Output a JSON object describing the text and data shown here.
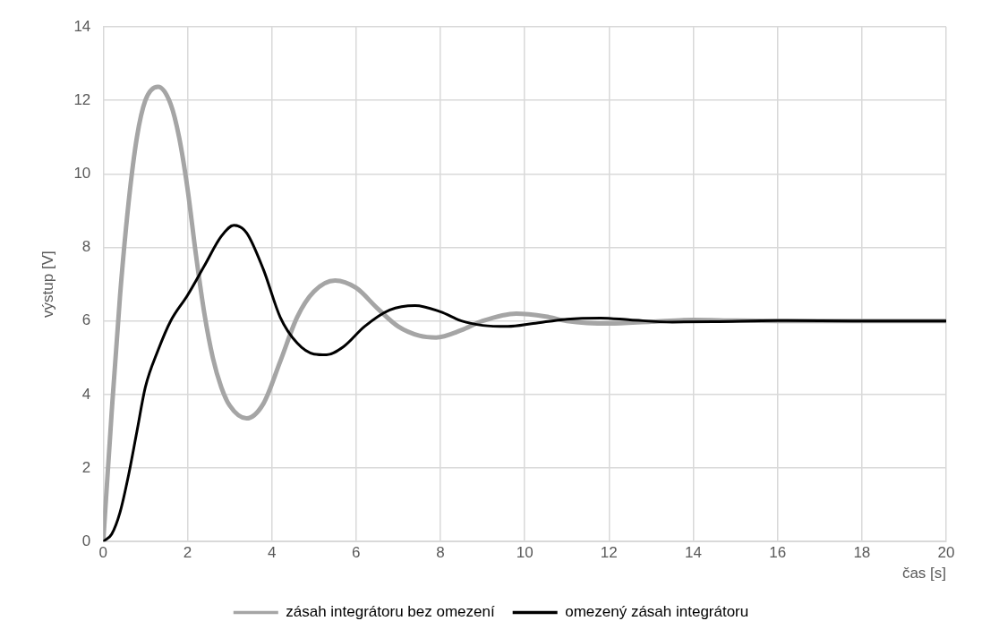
{
  "chart_data": {
    "type": "line",
    "xlabel": "čas [s]",
    "ylabel": "výstup [V]",
    "xlim": [
      0,
      20
    ],
    "xticks": [
      0,
      2,
      4,
      6,
      8,
      10,
      12,
      14,
      16,
      18,
      20
    ],
    "ylim": [
      0,
      14
    ],
    "yticks": [
      0,
      2,
      4,
      6,
      8,
      10,
      12,
      14
    ],
    "grid": true,
    "legend": "bottom",
    "marker": "none",
    "line_style": "solid",
    "series": [
      {
        "name": "zásah integrátoru bez omezení",
        "color": "#a5a5a5",
        "x": [
          0,
          0.2,
          0.4,
          0.6,
          0.8,
          1.0,
          1.3,
          1.6,
          1.8,
          2.0,
          2.2,
          2.4,
          2.6,
          2.8,
          3.0,
          3.4,
          3.8,
          4.2,
          4.6,
          5.0,
          5.5,
          6.0,
          6.5,
          7.0,
          7.5,
          7.9,
          8.5,
          9.0,
          9.8,
          10.5,
          11.0,
          12,
          13,
          14,
          15,
          16,
          20
        ],
        "values": [
          0,
          3.5,
          6.7,
          9.2,
          11.0,
          12.0,
          12.37,
          11.9,
          11.0,
          9.6,
          7.8,
          6.2,
          5.0,
          4.2,
          3.7,
          3.35,
          3.75,
          4.9,
          6.1,
          6.8,
          7.1,
          6.9,
          6.35,
          5.85,
          5.6,
          5.55,
          5.75,
          6.0,
          6.2,
          6.12,
          6.0,
          5.93,
          5.98,
          6.03,
          6.01,
          6.0,
          6.0
        ]
      },
      {
        "name": "omezený zásah integrátoru",
        "color": "#000000",
        "x": [
          0,
          0.2,
          0.4,
          0.6,
          0.8,
          1.0,
          1.3,
          1.6,
          2.0,
          2.4,
          2.8,
          3.1,
          3.4,
          3.8,
          4.2,
          4.6,
          5.0,
          5.3,
          5.7,
          6.2,
          6.8,
          7.4,
          8.0,
          8.5,
          9.0,
          9.6,
          10.2,
          11.0,
          11.8,
          12.5,
          13.5,
          14.5,
          16,
          18,
          20
        ],
        "values": [
          0,
          0.2,
          0.8,
          1.8,
          3.0,
          4.2,
          5.2,
          6.0,
          6.7,
          7.5,
          8.3,
          8.6,
          8.4,
          7.4,
          6.1,
          5.4,
          5.1,
          5.08,
          5.3,
          5.85,
          6.3,
          6.42,
          6.25,
          6.0,
          5.88,
          5.85,
          5.93,
          6.05,
          6.08,
          6.03,
          5.97,
          5.98,
          6.01,
          6.0,
          6.0
        ]
      }
    ]
  }
}
